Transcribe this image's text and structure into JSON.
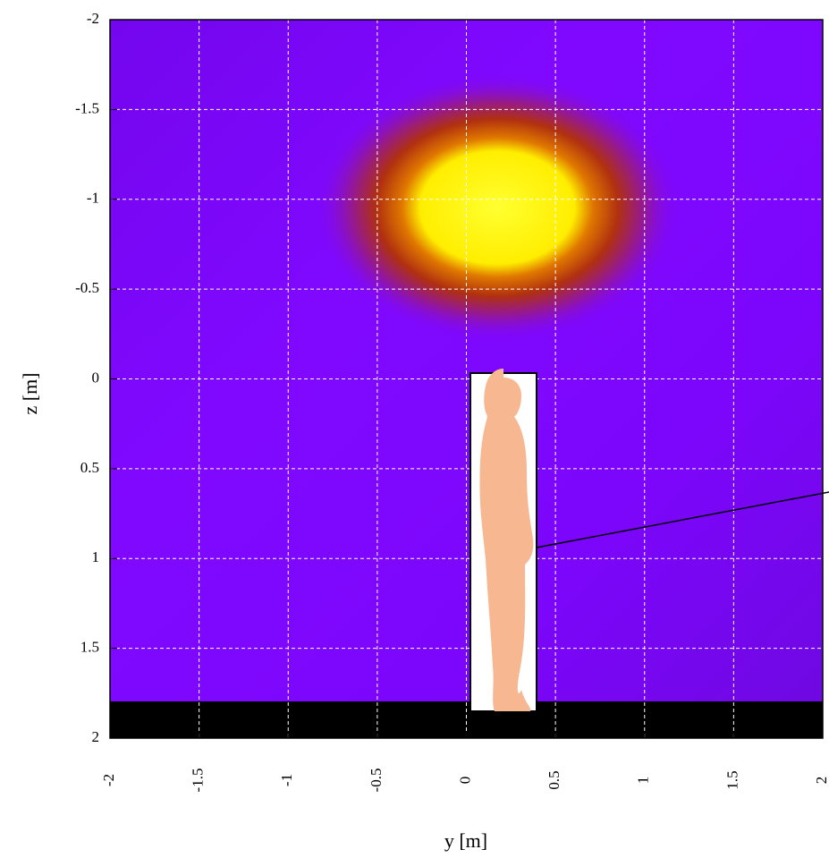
{
  "chart_data": {
    "type": "heatmap",
    "xlabel": "y [m]",
    "ylabel": "z [m]",
    "xlim": [
      -2,
      2
    ],
    "ylim": [
      -2,
      2
    ],
    "y_inverted": true,
    "xticks": [
      -2,
      -1.5,
      -1,
      -0.5,
      0,
      0.5,
      1,
      1.5,
      2
    ],
    "yticks": [
      -2,
      -1.5,
      -1,
      -0.5,
      0,
      0.5,
      1,
      1.5,
      2
    ],
    "grid": true
  }
}
